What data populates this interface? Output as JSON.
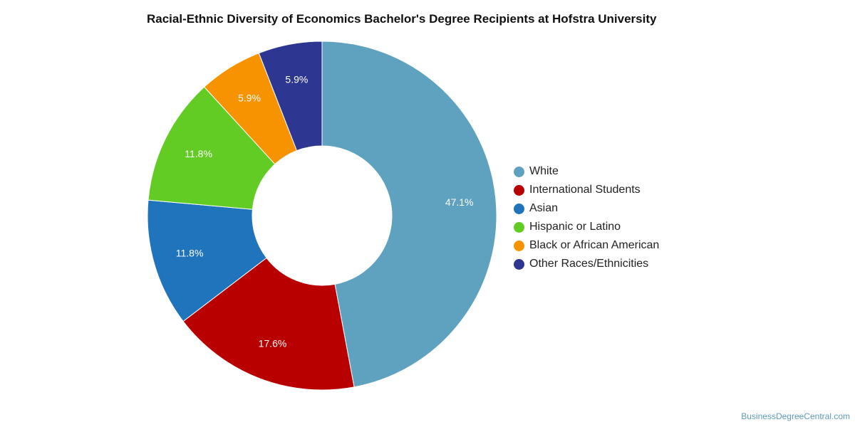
{
  "chart_data": {
    "type": "pie",
    "title": "Racial-Ethnic Diversity of Economics Bachelor's Degree Recipients at Hofstra University",
    "hole": "donut",
    "legend_position": "right",
    "slices": [
      {
        "name": "White",
        "value": 47.1,
        "label": "47.1%",
        "color": "#5ea2bf"
      },
      {
        "name": "International Students",
        "value": 17.6,
        "label": "17.6%",
        "color": "#b90000"
      },
      {
        "name": "Asian",
        "value": 11.8,
        "label": "11.8%",
        "color": "#1f74bb"
      },
      {
        "name": "Hispanic or Latino",
        "value": 11.8,
        "label": "11.8%",
        "color": "#62cc24"
      },
      {
        "name": "Black or African American",
        "value": 5.9,
        "label": "5.9%",
        "color": "#f79300"
      },
      {
        "name": "Other Races/Ethnicities",
        "value": 5.9,
        "label": "5.9%",
        "color": "#2d3690"
      }
    ]
  },
  "watermark": "BusinessDegreeCentral.com"
}
